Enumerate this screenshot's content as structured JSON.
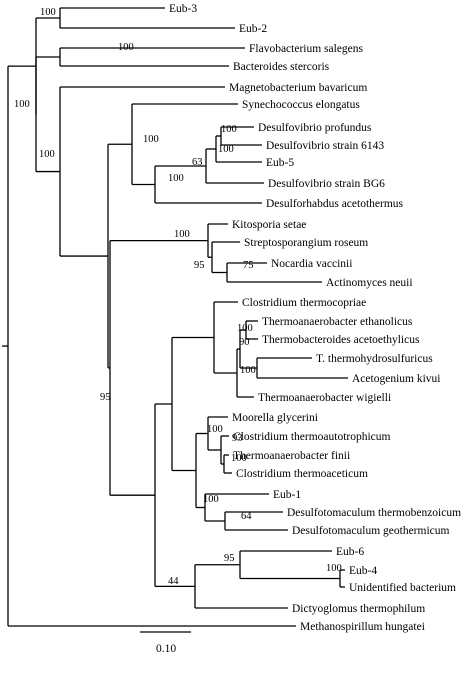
{
  "taxa": [
    "Eub-3",
    "Eub-2",
    "Flavobacterium salegens",
    "Bacteroides stercoris",
    "Magnetobacterium bavaricum",
    "Synechococcus elongatus",
    "Desulfovibrio profundus",
    "Desulfovibrio strain 6143",
    "Eub-5",
    "Desulfovibrio strain BG6",
    "Desulforhabdus acetothermus",
    "Kitosporia setae",
    "Streptosporangium roseum",
    "Nocardia vaccinii",
    "Actinomyces neuii",
    "Clostridium thermocopriae",
    "Thermoanaerobacter ethanolicus",
    "Thermobacteroides acetoethylicus",
    "T. thermohydrosulfuricus",
    "Acetogenium kivui",
    "Thermoanaerobacter wigielli",
    "Moorella glycerini",
    "Clostridium thermoautotrophicum",
    "Thermoanaerobacter finii",
    "Clostridium thermoaceticum",
    "Eub-1",
    "Desulfotomaculum thermobenzoicum",
    "Desulfotomaculum geothermicum",
    "Eub-6",
    "Eub-4",
    "Unidentified bacterium",
    "Dictyoglomus thermophilum",
    "Methanospirillum hungatei"
  ],
  "bootstrap": [
    "100",
    "100",
    "100",
    "100",
    "100",
    "63",
    "100",
    "100",
    "100",
    "95",
    "75",
    "100",
    "100",
    "90",
    "100",
    "95",
    "100",
    "93",
    "100",
    "100",
    "64",
    "95",
    "100",
    "44"
  ],
  "scale_bar": {
    "label": "0.10"
  }
}
